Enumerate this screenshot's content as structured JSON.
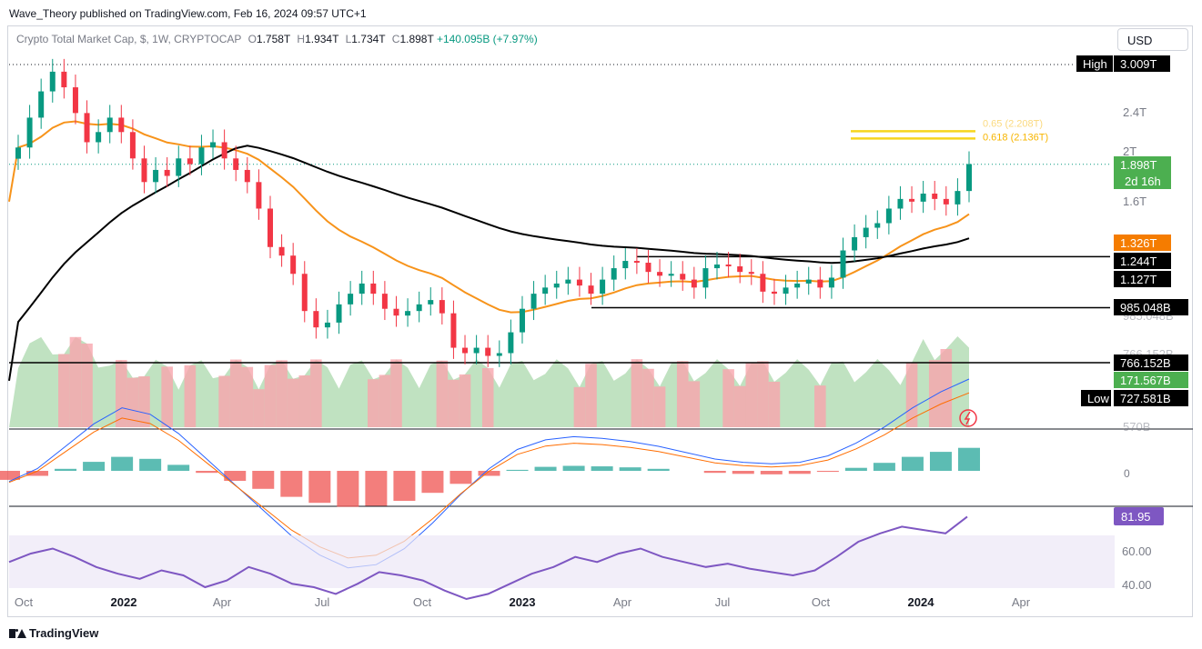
{
  "publisher_line": "Wave_Theory published on TradingView.com, Feb 16, 2024 09:57 UTC+1",
  "legend": {
    "symbol": "Crypto Total Market Cap, $, 1W, CRYPTOCAP",
    "open_key": "O",
    "open": "1.758T",
    "high_key": "H",
    "high": "1.934T",
    "low_key": "L",
    "low": "1.734T",
    "close_key": "C",
    "close": "1.898T",
    "change": "+140.095B (+7.97%)"
  },
  "currency_button": "USD",
  "footer_brand": "TradingView",
  "colors": {
    "up": "#089981",
    "down": "#f23645",
    "ema50": "#f7931a",
    "ema200": "#000000",
    "macd": "#2962ff",
    "signal": "#ff6d00",
    "rsi": "#7e57c2",
    "fib": "#f7d51d"
  },
  "chart_data": [
    {
      "type": "candlestick",
      "title": "Crypto Total Market Cap, $, 1W, CRYPTOCAP",
      "ylim": [
        0.57,
        3.009
      ],
      "y_scale": "log",
      "x_labels": [
        "Oct",
        "2022",
        "Apr",
        "Jul",
        "Oct",
        "2023",
        "Apr",
        "Jul",
        "Oct",
        "2024",
        "Apr"
      ],
      "y_ticks": [
        "2.4T",
        "2T",
        "1.6T",
        "985.048B",
        "766.152B",
        "570B"
      ],
      "price_levels": [
        {
          "label": "High",
          "value": "3.009T"
        },
        {
          "label": "",
          "value": "1.898T",
          "extra": "2d 16h"
        },
        {
          "label": "",
          "value": "1.326T"
        },
        {
          "label": "",
          "value": "1.244T"
        },
        {
          "label": "",
          "value": "1.127T"
        },
        {
          "label": "",
          "value": "985.048B"
        },
        {
          "label": "",
          "value": "766.152B"
        },
        {
          "label": "",
          "value": "171.567B"
        },
        {
          "label": "Low",
          "value": "727.581B"
        }
      ],
      "fib_levels": [
        {
          "label": "0.65 (2.208T)",
          "value": 2.208
        },
        {
          "label": "0.618 (2.136T)",
          "value": 2.136
        }
      ],
      "close_series": [
        2.05,
        2.35,
        2.65,
        2.9,
        2.7,
        2.4,
        2.1,
        2.2,
        2.35,
        2.2,
        1.95,
        1.75,
        1.85,
        1.8,
        1.95,
        1.9,
        2.05,
        2.1,
        1.95,
        1.85,
        1.75,
        1.55,
        1.3,
        1.25,
        1.15,
        0.97,
        0.9,
        0.92,
        1.0,
        1.05,
        1.1,
        1.05,
        0.98,
        0.95,
        0.97,
        1.0,
        1.02,
        0.96,
        0.82,
        0.8,
        0.82,
        0.79,
        0.8,
        0.88,
        0.98,
        1.05,
        1.08,
        1.1,
        1.12,
        1.09,
        1.05,
        1.12,
        1.18,
        1.22,
        1.21,
        1.16,
        1.14,
        1.15,
        1.12,
        1.08,
        1.18,
        1.2,
        1.19,
        1.16,
        1.15,
        1.06,
        1.05,
        1.08,
        1.1,
        1.12,
        1.08,
        1.13,
        1.28,
        1.36,
        1.42,
        1.45,
        1.55,
        1.62,
        1.6,
        1.66,
        1.62,
        1.58,
        1.68,
        1.9
      ]
    },
    {
      "type": "line",
      "title": "",
      "series": [
        {
          "name": "",
          "values": [
            -0.9,
            -0.5,
            0.2,
            0.9,
            1.4,
            1.2,
            0.6,
            -0.2,
            -1.0,
            -1.8,
            -2.6,
            -3.2,
            -3.6,
            -3.5,
            -3.0,
            -2.2,
            -1.3,
            -0.5,
            0.1,
            0.4,
            0.5,
            0.45,
            0.35,
            0.2,
            0.0,
            -0.2,
            -0.3,
            -0.35,
            -0.3,
            -0.1,
            0.3,
            0.8,
            1.4,
            1.9,
            2.3
          ]
        }
      ],
      "y_ticks": [
        "0"
      ]
    },
    {
      "type": "line",
      "title": "",
      "series": [
        {
          "name": "",
          "values": [
            55,
            60,
            63,
            58,
            52,
            48,
            45,
            50,
            47,
            40,
            44,
            52,
            48,
            42,
            40,
            36,
            42,
            49,
            47,
            44,
            38,
            33,
            36,
            42,
            48,
            52,
            58,
            55,
            60,
            63,
            58,
            55,
            52,
            54,
            51,
            49,
            47,
            50,
            58,
            67,
            72,
            76,
            74,
            72,
            81.95
          ]
        }
      ],
      "y_ticks": [
        "60.00",
        "40.00"
      ],
      "last_value": "81.95"
    }
  ]
}
